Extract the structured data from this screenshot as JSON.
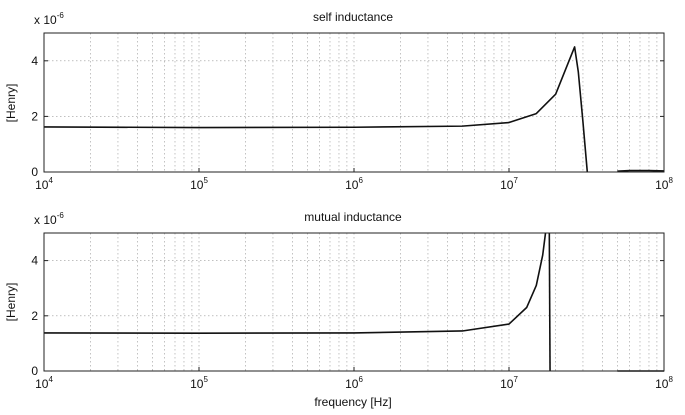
{
  "chart_data": [
    {
      "type": "line",
      "title": "self inductance",
      "ylabel": "[Henry]",
      "xlabel": "",
      "xscale": "log",
      "xlim": [
        10000,
        100000000
      ],
      "ylim": [
        0,
        5e-06
      ],
      "scale_note": {
        "base": "x 10",
        "exponent": "-6"
      },
      "xticks": [
        {
          "base": "10",
          "exp": "4"
        },
        {
          "base": "10",
          "exp": "5"
        },
        {
          "base": "10",
          "exp": "6"
        },
        {
          "base": "10",
          "exp": "7"
        },
        {
          "base": "10",
          "exp": "8"
        }
      ],
      "yticks": [
        "0",
        "2",
        "4"
      ],
      "grid": true,
      "series": [
        {
          "segments": [
            [
              [
                10000,
                1.62e-06
              ],
              [
                100000,
                1.6e-06
              ],
              [
                1000000,
                1.61e-06
              ],
              [
                5000000,
                1.65e-06
              ],
              [
                10000000,
                1.78e-06
              ],
              [
                15000000,
                2.1e-06
              ],
              [
                20000000,
                2.8e-06
              ],
              [
                24000000,
                3.9e-06
              ],
              [
                26500000,
                4.5e-06
              ],
              [
                28000000,
                3.6e-06
              ],
              [
                30000000,
                1.8e-06
              ],
              [
                32000000,
                0.0
              ]
            ],
            [
              [
                50000000,
                3e-08
              ],
              [
                60000000,
                5e-08
              ],
              [
                80000000,
                5e-08
              ],
              [
                100000000,
                4e-08
              ]
            ]
          ]
        }
      ]
    },
    {
      "type": "line",
      "title": "mutual inductance",
      "ylabel": "[Henry]",
      "xlabel": "frequency [Hz]",
      "xscale": "log",
      "xlim": [
        10000,
        100000000
      ],
      "ylim": [
        0,
        5e-06
      ],
      "scale_note": {
        "base": "x 10",
        "exponent": "-6"
      },
      "xticks": [
        {
          "base": "10",
          "exp": "4"
        },
        {
          "base": "10",
          "exp": "5"
        },
        {
          "base": "10",
          "exp": "6"
        },
        {
          "base": "10",
          "exp": "7"
        },
        {
          "base": "10",
          "exp": "8"
        }
      ],
      "yticks": [
        "0",
        "2",
        "4"
      ],
      "grid": true,
      "series": [
        {
          "segments": [
            [
              [
                10000,
                1.38e-06
              ],
              [
                100000,
                1.37e-06
              ],
              [
                1000000,
                1.38e-06
              ],
              [
                5000000,
                1.45e-06
              ],
              [
                10000000,
                1.7e-06
              ],
              [
                13000000,
                2.3e-06
              ],
              [
                15000000,
                3.1e-06
              ],
              [
                16500000,
                4.2e-06
              ],
              [
                17200000,
                5e-06
              ]
            ],
            [
              [
                18200000,
                5e-06
              ],
              [
                18300000,
                2.5e-06
              ],
              [
                18400000,
                0.0
              ]
            ],
            [
              [
                50000000,
                0.0
              ],
              [
                100000000,
                0.0
              ]
            ]
          ]
        }
      ]
    }
  ]
}
